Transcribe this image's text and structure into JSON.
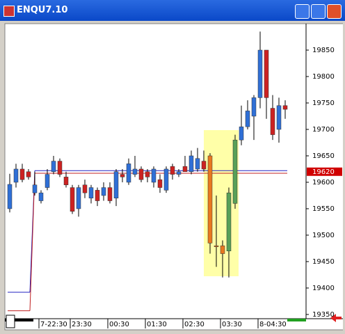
{
  "window": {
    "title": "ENQU7.10"
  },
  "chart_data": {
    "type": "candlestick",
    "categories": [
      null,
      null,
      null,
      null,
      null,
      null,
      null,
      "7-22:30",
      null,
      null,
      null,
      null,
      "23:30",
      null,
      null,
      null,
      null,
      null,
      "00:30",
      null,
      null,
      null,
      null,
      null,
      "01:30",
      null,
      null,
      null,
      null,
      null,
      "02:30",
      null,
      null,
      null,
      null,
      null,
      "03:30",
      null,
      null,
      null,
      null,
      null,
      "8-04:30",
      null,
      null
    ],
    "open": [
      19550,
      19600,
      19625,
      19620,
      19580,
      19565,
      19590,
      19620,
      19640,
      19610,
      19590,
      19550,
      19595,
      19570,
      19585,
      19575,
      19590,
      19570,
      19615,
      19600,
      19615,
      19625,
      19620,
      19600,
      19605,
      19585,
      19630,
      19615,
      19630,
      19620,
      19625,
      19640,
      19650,
      19480,
      19480,
      19470,
      19560,
      19680,
      19705,
      19725,
      19760,
      19850,
      19740,
      19700,
      19745
    ],
    "high": [
      19616,
      19635,
      19635,
      19625,
      19620,
      19585,
      19625,
      19650,
      19645,
      19620,
      19595,
      19595,
      19605,
      19595,
      19590,
      19600,
      19600,
      19625,
      19625,
      19645,
      19650,
      19630,
      19625,
      19630,
      19615,
      19630,
      19635,
      19625,
      19650,
      19660,
      19665,
      19660,
      19655,
      19575,
      19490,
      19590,
      19690,
      19745,
      19755,
      19765,
      19885,
      19850,
      19765,
      19760,
      19755
    ],
    "low": [
      19543,
      19590,
      19600,
      19605,
      19575,
      19560,
      19585,
      19615,
      19610,
      19590,
      19540,
      19535,
      19570,
      19560,
      19555,
      19565,
      19560,
      19555,
      19600,
      19595,
      19610,
      19600,
      19600,
      19590,
      19580,
      19580,
      19605,
      19610,
      19620,
      19615,
      19620,
      19620,
      19465,
      19440,
      19420,
      19420,
      19550,
      19670,
      19700,
      19680,
      19740,
      19720,
      19680,
      19675,
      19720
    ],
    "close": [
      19596,
      19625,
      19605,
      19610,
      19595,
      19580,
      19615,
      19640,
      19615,
      19595,
      19545,
      19590,
      19580,
      19590,
      19565,
      19590,
      19565,
      19620,
      19610,
      19635,
      19625,
      19605,
      19610,
      19625,
      19590,
      19625,
      19615,
      19620,
      19620,
      19650,
      19645,
      19625,
      19485,
      19478,
      19465,
      19580,
      19680,
      19705,
      19735,
      19760,
      19850,
      19760,
      19690,
      19745,
      19738
    ],
    "colors": [
      "#2f6fd6",
      "#2f6fd6",
      "#cc2222",
      "#cc2222",
      "#2f6fd6",
      "#2f6fd6",
      "#2f6fd6",
      "#2f6fd6",
      "#cc2222",
      "#cc2222",
      "#cc2222",
      "#2f6fd6",
      "#cc2222",
      "#2f6fd6",
      "#cc2222",
      "#2f6fd6",
      "#cc2222",
      "#2f6fd6",
      "#cc2222",
      "#2f6fd6",
      "#2f6fd6",
      "#cc2222",
      "#cc2222",
      "#2f6fd6",
      "#cc2222",
      "#2f6fd6",
      "#cc2222",
      "#2f6fd6",
      "#cc2222",
      "#2f6fd6",
      "#2f6fd6",
      "#cc2222",
      "#e87820",
      "#e87820",
      "#e87820",
      "#58a058",
      "#58a058",
      "#2f6fd6",
      "#2f6fd6",
      "#2f6fd6",
      "#2f6fd6",
      "#cc2222",
      "#cc2222",
      "#2f6fd6",
      "#cc2222"
    ],
    "lines": [
      {
        "color": "#2020c0",
        "from": 19392,
        "to": 19622
      },
      {
        "color": "#c02020",
        "from": 19357,
        "to": 19617
      }
    ],
    "last_price": 19620,
    "ylim": [
      19342,
      19900
    ],
    "yticks": [
      19350,
      19400,
      19450,
      19500,
      19550,
      19600,
      19650,
      19700,
      19750,
      19800,
      19850
    ]
  }
}
